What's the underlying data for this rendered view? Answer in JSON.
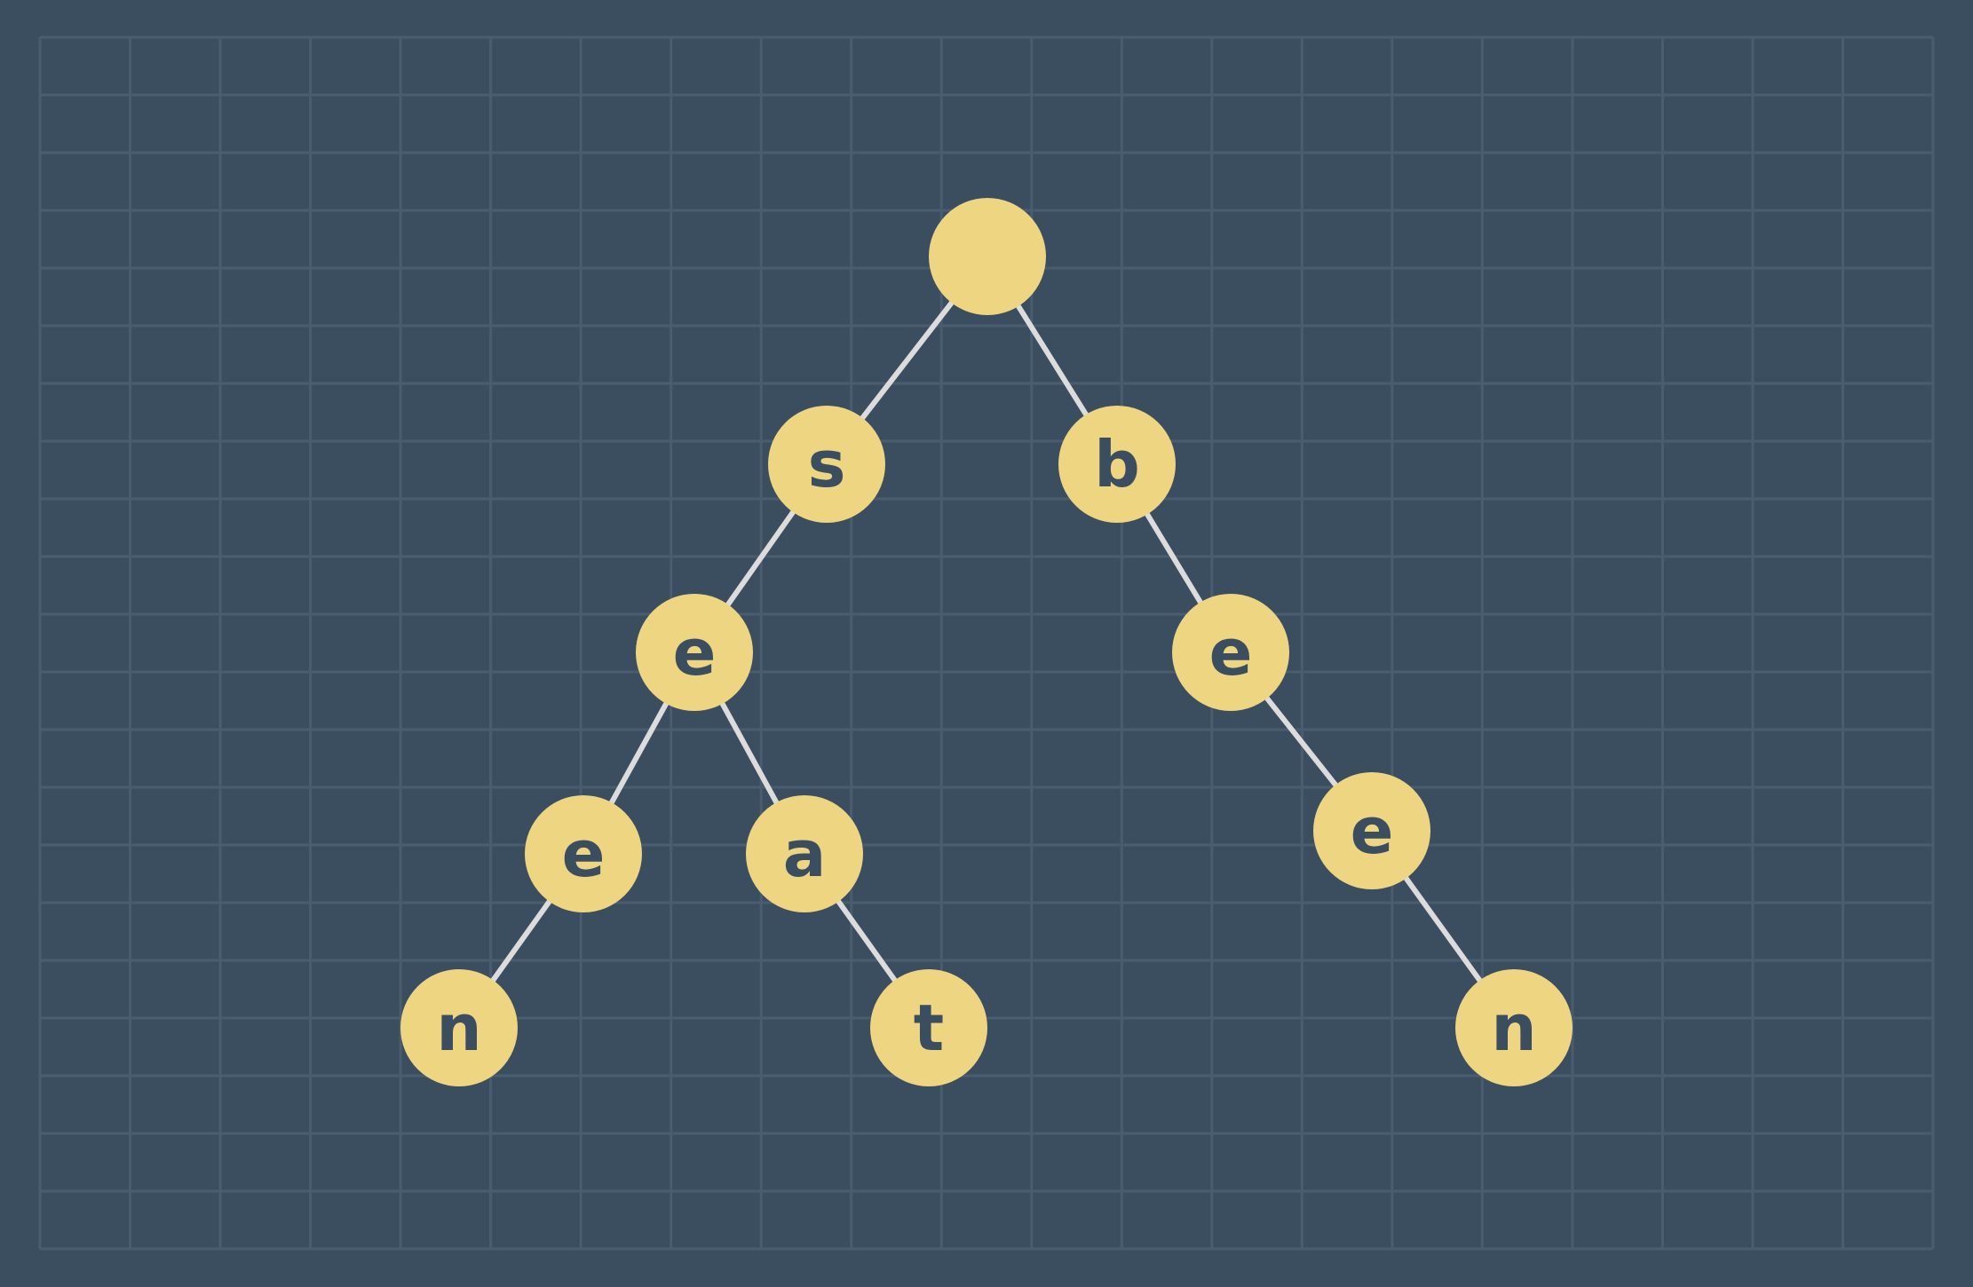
{
  "colors": {
    "background": "#3b4e60",
    "grid_line": "#4a5d6e",
    "node_fill": "#eed582",
    "edge": "#dcdcdc",
    "label": "#3b4e60"
  },
  "trie": {
    "nodes": [
      {
        "id": "root",
        "label": ""
      },
      {
        "id": "s",
        "label": "s"
      },
      {
        "id": "b",
        "label": "b"
      },
      {
        "id": "se",
        "label": "e"
      },
      {
        "id": "be",
        "label": "e"
      },
      {
        "id": "see",
        "label": "e"
      },
      {
        "id": "sea",
        "label": "a"
      },
      {
        "id": "bee",
        "label": "e"
      },
      {
        "id": "seen",
        "label": "n"
      },
      {
        "id": "seat",
        "label": "t"
      },
      {
        "id": "been",
        "label": "n"
      }
    ],
    "edges": [
      [
        "root",
        "s"
      ],
      [
        "root",
        "b"
      ],
      [
        "s",
        "se"
      ],
      [
        "b",
        "be"
      ],
      [
        "se",
        "see"
      ],
      [
        "se",
        "sea"
      ],
      [
        "be",
        "bee"
      ],
      [
        "see",
        "seen"
      ],
      [
        "sea",
        "seat"
      ],
      [
        "bee",
        "been"
      ]
    ]
  }
}
